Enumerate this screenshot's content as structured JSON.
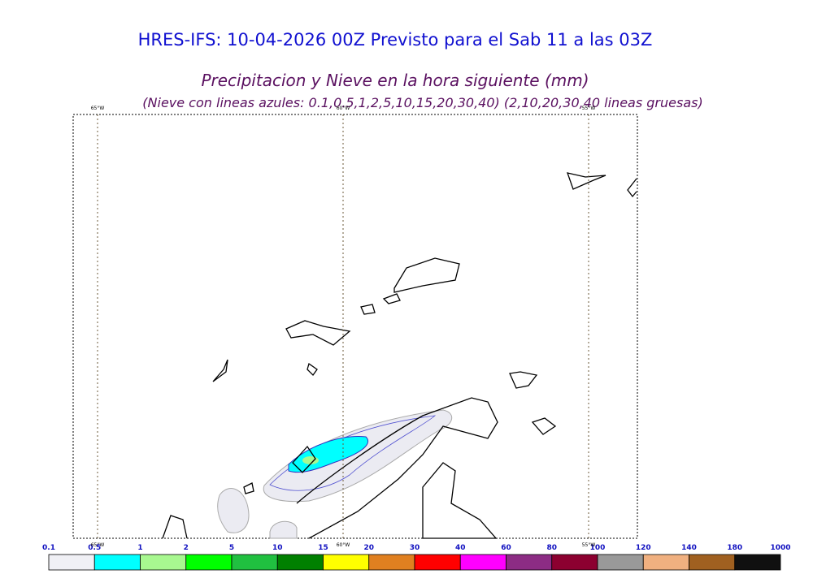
{
  "header": {
    "title": "HRES-IFS: 10-04-2026 00Z Previsto para el Sab 11 a las 03Z",
    "subtitle": "Precipitacion y Nieve en la hora siguiente (mm)",
    "note": "(Nieve con lineas azules: 0.1,0.5,1,2,5,10,15,20,30,40)  (2,10,20,30,40 lineas gruesas)"
  },
  "map": {
    "meridians": [
      "65°W",
      "60°W",
      "55°W"
    ]
  },
  "colorbar": {
    "labels": [
      "0.1",
      "0.5",
      "1",
      "2",
      "5",
      "10",
      "15",
      "20",
      "30",
      "40",
      "60",
      "80",
      "100",
      "120",
      "140",
      "180",
      "1000"
    ],
    "colors": [
      "#f0f0f5",
      "#00ffff",
      "#a8f890",
      "#00ff00",
      "#20c040",
      "#008000",
      "#ffff00",
      "#e08020",
      "#ff0000",
      "#ff00ff",
      "#8c2c84",
      "#8c0030",
      "#999999",
      "#f0b080",
      "#a06020",
      "#101010"
    ]
  }
}
